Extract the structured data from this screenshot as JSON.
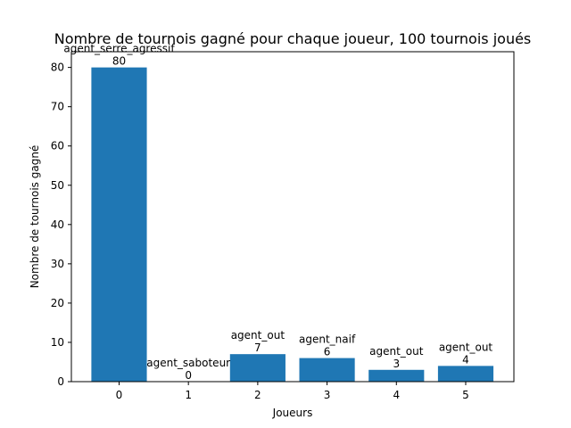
{
  "chart_data": {
    "type": "bar",
    "title": "Nombre de tournois gagné pour chaque joueur, 100 tournois joués",
    "xlabel": "Joueurs",
    "ylabel": "Nombre de tournois gagné",
    "categories": [
      "0",
      "1",
      "2",
      "3",
      "4",
      "5"
    ],
    "values": [
      80,
      0,
      7,
      6,
      3,
      4
    ],
    "bar_labels": [
      "agent_serre_agressif",
      "agent_saboteur",
      "agent_out",
      "agent_naif",
      "agent_out",
      "agent_out"
    ],
    "ylim": [
      0,
      84
    ],
    "yticks": [
      0,
      10,
      20,
      30,
      40,
      50,
      60,
      70,
      80
    ],
    "grid": false,
    "legend": false,
    "bar_color": "#1f77b4"
  }
}
